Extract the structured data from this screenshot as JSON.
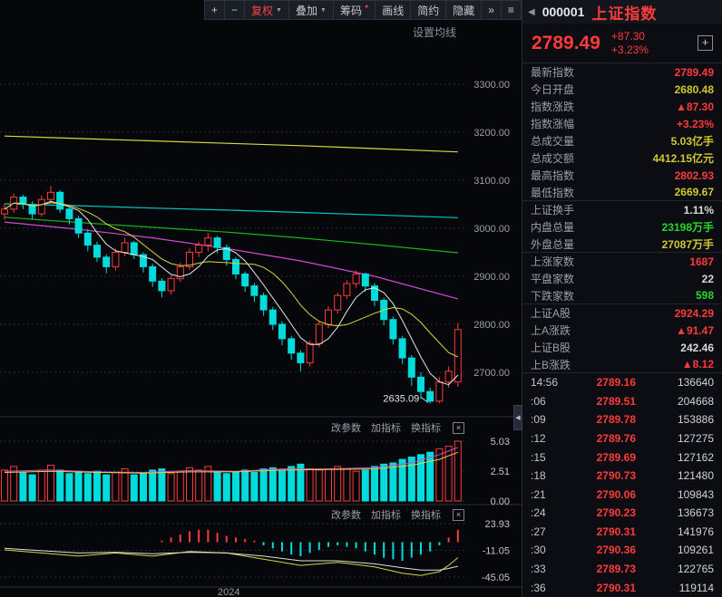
{
  "palette": {
    "red": "#ff3a3a",
    "yellow": "#d0c82e",
    "green": "#2bd42b",
    "white": "#d8d8d8",
    "cyan": "#00dcdc",
    "magenta": "#d24bd2"
  },
  "icons": {
    "collapse_arrow": "◀",
    "close": "×",
    "dropdown_arrow": "▼",
    "dot": "●"
  },
  "toolbar": {
    "buttons": [
      {
        "name": "zoom-in-button",
        "label": "+"
      },
      {
        "name": "zoom-out-button",
        "label": "−"
      },
      {
        "name": "adjust-mode-button",
        "label": "复权",
        "dropdown": true,
        "accent": true
      },
      {
        "name": "overlay-button",
        "label": "叠加",
        "dropdown": true
      },
      {
        "name": "chips-button",
        "label": "筹码",
        "dot": true
      },
      {
        "name": "draw-line-button",
        "label": "画线"
      },
      {
        "name": "simple-mode-button",
        "label": "简约"
      },
      {
        "name": "hide-button",
        "label": "隐藏"
      },
      {
        "name": "expand-button",
        "label": "»"
      },
      {
        "name": "layout-button",
        "label": "≡"
      }
    ]
  },
  "chart_ui": {
    "settings_label": "设置均线",
    "pane_links": [
      {
        "name": "change-params-link",
        "label": "改参数"
      },
      {
        "name": "add-indicator-link",
        "label": "加指标"
      },
      {
        "name": "switch-indicator-link",
        "label": "换指标"
      }
    ]
  },
  "chart_data": {
    "type": "candlestick",
    "axis_ticks": [
      "3300.00",
      "3200.00",
      "3100.00",
      "3000.00",
      "2900.00",
      "2800.00",
      "2700.00"
    ],
    "low_annotation": "2635.09",
    "low_candle_index": 46,
    "x_axis_label": "2024",
    "candles": [
      [
        3030,
        3052,
        3018,
        3040
      ],
      [
        3040,
        3072,
        3032,
        3065
      ],
      [
        3065,
        3070,
        3040,
        3050
      ],
      [
        3050,
        3056,
        3018,
        3030
      ],
      [
        3030,
        3068,
        3024,
        3060
      ],
      [
        3060,
        3088,
        3052,
        3075
      ],
      [
        3075,
        3080,
        3032,
        3040
      ],
      [
        3040,
        3046,
        3008,
        3020
      ],
      [
        3020,
        3026,
        2980,
        2990
      ],
      [
        2990,
        2998,
        2952,
        2965
      ],
      [
        2965,
        2972,
        2930,
        2940
      ],
      [
        2940,
        2946,
        2906,
        2920
      ],
      [
        2920,
        2958,
        2912,
        2950
      ],
      [
        2950,
        2980,
        2942,
        2970
      ],
      [
        2970,
        2974,
        2936,
        2945
      ],
      [
        2945,
        2950,
        2908,
        2920
      ],
      [
        2920,
        2926,
        2878,
        2890
      ],
      [
        2890,
        2896,
        2856,
        2870
      ],
      [
        2870,
        2902,
        2862,
        2895
      ],
      [
        2895,
        2928,
        2888,
        2920
      ],
      [
        2920,
        2958,
        2914,
        2950
      ],
      [
        2950,
        2972,
        2940,
        2965
      ],
      [
        2965,
        2990,
        2952,
        2980
      ],
      [
        2980,
        2984,
        2948,
        2960
      ],
      [
        2960,
        2966,
        2922,
        2935
      ],
      [
        2935,
        2940,
        2894,
        2905
      ],
      [
        2905,
        2910,
        2868,
        2880
      ],
      [
        2880,
        2886,
        2846,
        2860
      ],
      [
        2860,
        2866,
        2818,
        2830
      ],
      [
        2830,
        2836,
        2788,
        2800
      ],
      [
        2800,
        2806,
        2756,
        2770
      ],
      [
        2770,
        2776,
        2726,
        2740
      ],
      [
        2740,
        2746,
        2702,
        2720
      ],
      [
        2720,
        2766,
        2712,
        2760
      ],
      [
        2760,
        2806,
        2752,
        2800
      ],
      [
        2800,
        2838,
        2792,
        2830
      ],
      [
        2830,
        2866,
        2822,
        2860
      ],
      [
        2860,
        2892,
        2852,
        2885
      ],
      [
        2885,
        2912,
        2876,
        2905
      ],
      [
        2905,
        2908,
        2868,
        2880
      ],
      [
        2880,
        2886,
        2838,
        2850
      ],
      [
        2850,
        2856,
        2798,
        2810
      ],
      [
        2810,
        2816,
        2758,
        2770
      ],
      [
        2770,
        2776,
        2718,
        2730
      ],
      [
        2730,
        2736,
        2672,
        2690
      ],
      [
        2690,
        2700,
        2645,
        2660
      ],
      [
        2660,
        2668,
        2635,
        2640
      ],
      [
        2640,
        2690,
        2636,
        2680
      ],
      [
        2680,
        2712,
        2668,
        2702
      ],
      [
        2680,
        2803,
        2670,
        2789
      ]
    ],
    "ma_lines": [
      {
        "name": "ma-long-yellow-line",
        "color": "#d8d840",
        "points": [
          [
            0,
            3192
          ],
          [
            8,
            3187
          ],
          [
            16,
            3182
          ],
          [
            24,
            3177
          ],
          [
            32,
            3172
          ],
          [
            40,
            3166
          ],
          [
            49,
            3159
          ]
        ]
      },
      {
        "name": "ma-cyan-line",
        "color": "#00c8c8",
        "points": [
          [
            0,
            3051
          ],
          [
            8,
            3047
          ],
          [
            16,
            3042
          ],
          [
            24,
            3038
          ],
          [
            32,
            3033
          ],
          [
            40,
            3028
          ],
          [
            49,
            3022
          ]
        ]
      },
      {
        "name": "ma-green-line",
        "color": "#19b419",
        "points": [
          [
            0,
            3023
          ],
          [
            8,
            3012
          ],
          [
            16,
            3002
          ],
          [
            24,
            2992
          ],
          [
            32,
            2980
          ],
          [
            40,
            2966
          ],
          [
            49,
            2949
          ]
        ]
      },
      {
        "name": "ma-magenta-line",
        "color": "#d24bd2",
        "points": [
          [
            0,
            3013
          ],
          [
            8,
            2998
          ],
          [
            16,
            2980
          ],
          [
            24,
            2958
          ],
          [
            32,
            2932
          ],
          [
            40,
            2900
          ],
          [
            49,
            2853
          ]
        ]
      }
    ],
    "fast_ma": [
      {
        "window": 5,
        "color": "#e8e8e8"
      },
      {
        "window": 10,
        "color": "#d8d840"
      }
    ],
    "volume_pane": {
      "scale": [
        "5.03",
        "2.51",
        "0.00"
      ],
      "bars": [
        2.6,
        2.9,
        2.4,
        2.2,
        2.6,
        3.0,
        2.6,
        2.3,
        2.5,
        2.3,
        2.5,
        2.2,
        2.4,
        2.7,
        2.2,
        2.3,
        2.6,
        2.7,
        2.3,
        2.5,
        2.8,
        2.6,
        2.9,
        2.5,
        2.3,
        2.4,
        2.6,
        2.4,
        2.7,
        2.8,
        2.6,
        2.9,
        3.1,
        2.7,
        2.6,
        2.7,
        2.9,
        2.7,
        2.5,
        2.6,
        2.9,
        3.1,
        3.2,
        3.5,
        3.7,
        3.9,
        4.1,
        4.4,
        4.6,
        5.03
      ],
      "lines": [
        {
          "name": "volume-ma-magenta-line",
          "color": "#d24bd2",
          "points": [
            [
              0,
              2.5
            ],
            [
              5,
              2.6
            ],
            [
              10,
              2.45
            ],
            [
              15,
              2.4
            ],
            [
              20,
              2.55
            ],
            [
              25,
              2.5
            ],
            [
              30,
              2.7
            ],
            [
              35,
              2.7
            ],
            [
              40,
              2.8
            ],
            [
              44,
              3.2
            ],
            [
              47,
              3.9
            ],
            [
              49,
              4.5
            ]
          ]
        },
        {
          "name": "volume-ma-yellow-line",
          "color": "#d8d840",
          "points": [
            [
              0,
              2.4
            ],
            [
              5,
              2.5
            ],
            [
              10,
              2.4
            ],
            [
              15,
              2.35
            ],
            [
              20,
              2.45
            ],
            [
              25,
              2.45
            ],
            [
              30,
              2.6
            ],
            [
              35,
              2.65
            ],
            [
              40,
              2.7
            ],
            [
              44,
              3.0
            ],
            [
              47,
              3.5
            ],
            [
              49,
              4.1
            ]
          ]
        }
      ]
    },
    "indicator_pane": {
      "scale": [
        "23.93",
        "-11.05",
        "-45.05"
      ],
      "bars": [
        0,
        0,
        0,
        0,
        0,
        0,
        0,
        0,
        0,
        0,
        0,
        0,
        0,
        0,
        0,
        0,
        0,
        2,
        6,
        10,
        14,
        16,
        16,
        12,
        8,
        6,
        4,
        2,
        -4,
        -8,
        -12,
        -16,
        -18,
        -14,
        -10,
        -6,
        -4,
        -6,
        -8,
        -12,
        -16,
        -20,
        -22,
        -24,
        -20,
        -16,
        -12,
        -4,
        6,
        16
      ],
      "lines": [
        {
          "name": "dif-yellow-line",
          "color": "#d8d840",
          "points": [
            [
              0,
              -10
            ],
            [
              4,
              -14
            ],
            [
              8,
              -18
            ],
            [
              12,
              -14
            ],
            [
              16,
              -18
            ],
            [
              20,
              -12
            ],
            [
              24,
              -14
            ],
            [
              28,
              -22
            ],
            [
              32,
              -30
            ],
            [
              36,
              -26
            ],
            [
              40,
              -32
            ],
            [
              43,
              -40
            ],
            [
              45,
              -43
            ],
            [
              47,
              -38
            ],
            [
              48,
              -30
            ],
            [
              49,
              -20
            ]
          ]
        },
        {
          "name": "dea-white-line",
          "color": "#e0e0e0",
          "points": [
            [
              0,
              -8
            ],
            [
              4,
              -11
            ],
            [
              8,
              -14
            ],
            [
              12,
              -13
            ],
            [
              16,
              -15
            ],
            [
              20,
              -13
            ],
            [
              24,
              -14
            ],
            [
              28,
              -18
            ],
            [
              32,
              -24
            ],
            [
              36,
              -24
            ],
            [
              40,
              -28
            ],
            [
              43,
              -33
            ],
            [
              45,
              -36
            ],
            [
              47,
              -36
            ],
            [
              48,
              -34
            ],
            [
              49,
              -31
            ]
          ]
        }
      ]
    }
  },
  "quote": {
    "nav_left": "◀",
    "code": "000001",
    "name": "上证指数",
    "price": "2789.49",
    "change": "+87.30",
    "pct": "+3.23%",
    "add_label": "+",
    "rows": [
      {
        "label": "最新指数",
        "value": "2789.49",
        "color": "red"
      },
      {
        "label": "今日开盘",
        "value": "2680.48",
        "color": "yellow"
      },
      {
        "label": "指数涨跌",
        "value": "▲87.30",
        "color": "red"
      },
      {
        "label": "指数涨幅",
        "value": "+3.23%",
        "color": "red"
      },
      {
        "label": "总成交量",
        "value": "5.03亿手",
        "color": "yellow"
      },
      {
        "label": "总成交额",
        "value": "4412.15亿元",
        "color": "yellow"
      },
      {
        "label": "最高指数",
        "value": "2802.93",
        "color": "red"
      },
      {
        "label": "最低指数",
        "value": "2669.67",
        "color": "yellow",
        "section_end": true
      },
      {
        "label": "上证换手",
        "value": "1.11%",
        "color": "white"
      },
      {
        "label": "内盘总量",
        "value": "23198万手",
        "color": "green"
      },
      {
        "label": "外盘总量",
        "value": "27087万手",
        "color": "yellow",
        "section_end": true
      },
      {
        "label": "上涨家数",
        "value": "1687",
        "color": "red"
      },
      {
        "label": "平盘家数",
        "value": "22",
        "color": "white"
      },
      {
        "label": "下跌家数",
        "value": "598",
        "color": "green",
        "section_end": true
      },
      {
        "label": "上证A股",
        "value": "2924.29",
        "color": "red"
      },
      {
        "label": "上A涨跌",
        "value": "▲91.47",
        "color": "red"
      },
      {
        "label": "上证B股",
        "value": "242.46",
        "color": "white"
      },
      {
        "label": "上B涨跌",
        "value": "▲8.12",
        "color": "red",
        "section_end": true
      }
    ]
  },
  "ticks": {
    "rows": [
      {
        "time": "14:56",
        "price": "2789.16",
        "vol": "136640",
        "color": "red"
      },
      {
        "time": ":06",
        "price": "2789.51",
        "vol": "204668",
        "color": "red"
      },
      {
        "time": ":09",
        "price": "2789.78",
        "vol": "153886",
        "color": "red"
      },
      {
        "time": ":12",
        "price": "2789.76",
        "vol": "127275",
        "color": "red"
      },
      {
        "time": ":15",
        "price": "2789.69",
        "vol": "127162",
        "color": "red"
      },
      {
        "time": ":18",
        "price": "2790.73",
        "vol": "121480",
        "color": "red"
      },
      {
        "time": ":21",
        "price": "2790.06",
        "vol": "109843",
        "color": "red"
      },
      {
        "time": ":24",
        "price": "2790.23",
        "vol": "136673",
        "color": "red"
      },
      {
        "time": ":27",
        "price": "2790.31",
        "vol": "141976",
        "color": "red"
      },
      {
        "time": ":30",
        "price": "2790.36",
        "vol": "109261",
        "color": "red"
      },
      {
        "time": ":33",
        "price": "2789.73",
        "vol": "122765",
        "color": "red"
      },
      {
        "time": ":36",
        "price": "2790.31",
        "vol": "119114",
        "color": "red"
      }
    ]
  }
}
